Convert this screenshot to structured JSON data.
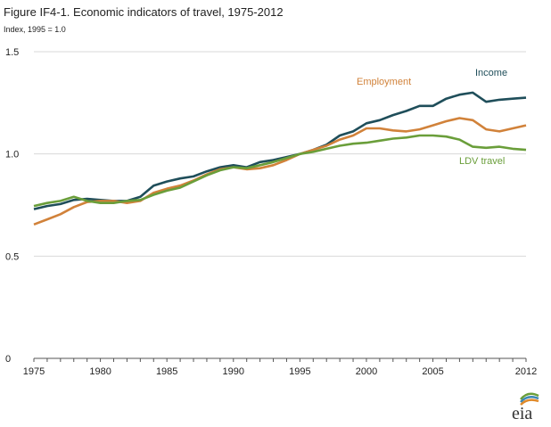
{
  "title": "Figure IF4-1. Economic indicators of travel, 1975-2012",
  "subtitle": "Index, 1995 = 1.0",
  "logo": {
    "icon": "eia-logo-icon",
    "text": "eia"
  },
  "chart_data": {
    "type": "line",
    "title": "Figure IF4-1. Economic indicators of travel, 1975-2012",
    "ylabel": "Index, 1995 = 1.0",
    "xlabel": "",
    "xlim": [
      1975,
      2012
    ],
    "ylim": [
      0,
      1.5
    ],
    "x_ticks": [
      1975,
      1980,
      1985,
      1990,
      1995,
      2000,
      2005,
      2012
    ],
    "y_ticks": [
      0,
      0.5,
      1.0,
      1.5
    ],
    "y_tick_labels": [
      "0",
      "0.5",
      "1.0",
      "1.5"
    ],
    "grid": "horizontal",
    "x": [
      1975,
      1976,
      1977,
      1978,
      1979,
      1980,
      1981,
      1982,
      1983,
      1984,
      1985,
      1986,
      1987,
      1988,
      1989,
      1990,
      1991,
      1992,
      1993,
      1994,
      1995,
      1996,
      1997,
      1998,
      1999,
      2000,
      2001,
      2002,
      2003,
      2004,
      2005,
      2006,
      2007,
      2008,
      2009,
      2010,
      2011,
      2012
    ],
    "series": [
      {
        "name": "Income",
        "color": "#1f4e5a",
        "values": [
          0.73,
          0.745,
          0.755,
          0.775,
          0.78,
          0.775,
          0.77,
          0.77,
          0.79,
          0.845,
          0.865,
          0.88,
          0.89,
          0.915,
          0.935,
          0.945,
          0.935,
          0.96,
          0.97,
          0.985,
          1.0,
          1.02,
          1.045,
          1.09,
          1.11,
          1.15,
          1.165,
          1.19,
          1.21,
          1.235,
          1.235,
          1.27,
          1.29,
          1.3,
          1.255,
          1.265,
          1.27,
          1.275
        ]
      },
      {
        "name": "Employment",
        "color": "#d1823a",
        "values": [
          0.655,
          0.68,
          0.705,
          0.74,
          0.765,
          0.77,
          0.77,
          0.76,
          0.77,
          0.81,
          0.83,
          0.845,
          0.87,
          0.9,
          0.925,
          0.935,
          0.925,
          0.93,
          0.945,
          0.97,
          1.0,
          1.02,
          1.04,
          1.07,
          1.09,
          1.125,
          1.125,
          1.115,
          1.11,
          1.12,
          1.14,
          1.16,
          1.175,
          1.165,
          1.12,
          1.11,
          1.125,
          1.14
        ]
      },
      {
        "name": "LDV travel",
        "color": "#6a9e3a",
        "values": [
          0.745,
          0.76,
          0.77,
          0.79,
          0.77,
          0.76,
          0.76,
          0.77,
          0.775,
          0.8,
          0.82,
          0.835,
          0.865,
          0.895,
          0.92,
          0.935,
          0.93,
          0.945,
          0.96,
          0.98,
          1.0,
          1.01,
          1.025,
          1.04,
          1.05,
          1.055,
          1.065,
          1.075,
          1.08,
          1.09,
          1.09,
          1.085,
          1.07,
          1.035,
          1.03,
          1.035,
          1.025,
          1.02
        ]
      }
    ]
  }
}
